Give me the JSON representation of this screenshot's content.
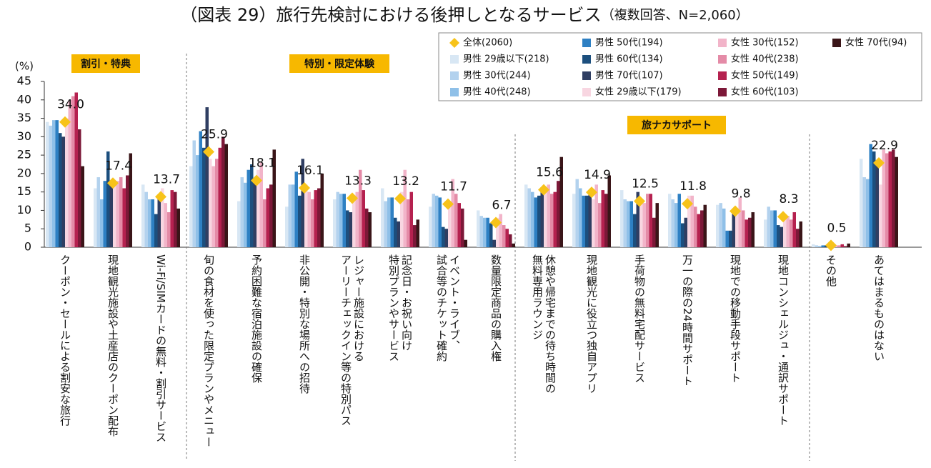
{
  "chart_data": {
    "type": "bar",
    "title": "（図表 29）旅行先検討における後押しとなるサービス",
    "subtitle": "（複数回答、N=2,060）",
    "y_label": "(%)",
    "sections": [
      "割引・特典",
      "特別・限定体験",
      "旅ナカサポート"
    ],
    "categories": [
      [
        "クーポン・セールによる割安な旅行"
      ],
      [
        "現地観光施設や土産店のクーポン配布"
      ],
      [
        "Wi-Fi/SIMカードの無料・割引サービス"
      ],
      [
        "旬の食材を使った限定プランやメニュー"
      ],
      [
        "予約困難な宿泊施設の確保"
      ],
      [
        "非公開・特別な場所への招待"
      ],
      [
        "レジャー施設における",
        "アーリーチェックイン等の特別パス"
      ],
      [
        "記念日・お祝い向け",
        "特別プランやサービス"
      ],
      [
        "イベント・ライブ、",
        "試合等のチケット確約"
      ],
      [
        "数量限定商品の購入権"
      ],
      [
        "休憩や帰宅までの待ち時間の",
        "無料専用ラウンジ"
      ],
      [
        "現地観光に役立つ独自アプリ"
      ],
      [
        "手荷物の無料宅配サービス"
      ],
      [
        "万一の際の24時間サポート"
      ],
      [
        "現地での移動手段サポート"
      ],
      [
        "現地コンシェルジュ・通訳サポート"
      ],
      [
        "その他"
      ],
      [
        "あてはまるものはない"
      ]
    ],
    "ylim": [
      0,
      45
    ],
    "yticks": [
      0,
      5,
      10,
      15,
      20,
      25,
      30,
      35,
      40,
      45
    ],
    "series": [
      {
        "name": "全体(2060)",
        "color": "#f7c31a",
        "marker": "diamond",
        "values": [
          34,
          17.4,
          13.7,
          25.9,
          18.1,
          16.1,
          13.3,
          13.2,
          11.7,
          6.7,
          15.6,
          14.9,
          12.5,
          11.8,
          9.8,
          8.3,
          0.5,
          22.9
        ],
        "value_labels": [
          "34.0",
          "17.4",
          "13.7",
          "25.9",
          "18.1",
          "16.1",
          "13.3",
          "13.2",
          "11.7",
          "6.7",
          "15.6",
          "14.9",
          "12.5",
          "11.8",
          "9.8",
          "8.3",
          "0.5",
          "22.9"
        ]
      },
      {
        "name": "男性 29歳以下(218)",
        "color": "#d8e7f4",
        "values": [
          34,
          16,
          17,
          22,
          12.5,
          11,
          13,
          16,
          11,
          10,
          17,
          14.5,
          15.5,
          14.5,
          11.5,
          7.5,
          0.8,
          24
        ]
      },
      {
        "name": "男性 30代(244)",
        "color": "#b3d2ee",
        "values": [
          33,
          19,
          15,
          29,
          19,
          17,
          15,
          12.5,
          14.5,
          8.5,
          16,
          18.5,
          13,
          13,
          12,
          11,
          0.5,
          19
        ]
      },
      {
        "name": "男性 40代(248)",
        "color": "#8fc0e8",
        "values": [
          34.5,
          13,
          13,
          25,
          17.5,
          17,
          14.5,
          13.5,
          14,
          8,
          15,
          16,
          12.5,
          12,
          10.5,
          10,
          0.3,
          18.5
        ]
      },
      {
        "name": "男性 50代(194)",
        "color": "#2e80c3",
        "values": [
          34.5,
          18,
          13,
          31.5,
          21,
          20.5,
          14.5,
          13.5,
          13.5,
          8,
          13.5,
          14,
          12.5,
          14.5,
          4.5,
          10,
          0.5,
          28
        ]
      },
      {
        "name": "男性 60代(134)",
        "color": "#1c4f7e",
        "values": [
          31,
          26,
          9,
          27,
          22.5,
          14,
          10,
          8,
          5.5,
          6.5,
          14,
          14,
          9,
          6.5,
          4.5,
          6,
          0.5,
          26
        ]
      },
      {
        "name": "男性 70代(107)",
        "color": "#2f3e62",
        "values": [
          30,
          17,
          13,
          38,
          18,
          24,
          9.5,
          7,
          5,
          2,
          15,
          14.5,
          15,
          8,
          10.5,
          5.5,
          0.5,
          22.5
        ]
      },
      {
        "name": "女性 29歳以下(179)",
        "color": "#f8d6e1",
        "values": [
          35,
          18,
          16,
          24,
          21,
          17,
          13,
          15,
          12,
          8,
          15,
          13,
          13,
          14,
          10,
          8.5,
          1,
          17
        ]
      },
      {
        "name": "女性 30代(152)",
        "color": "#f2b4c9",
        "values": [
          40,
          18,
          12,
          22,
          23,
          15,
          15,
          21,
          18.5,
          9,
          17,
          17,
          12,
          14,
          13.5,
          8.5,
          0.5,
          26.5
        ]
      },
      {
        "name": "女性 40代(238)",
        "color": "#e48ba7",
        "values": [
          41,
          19,
          9.5,
          24,
          13,
          13,
          21,
          13,
          14.5,
          6,
          14.5,
          12,
          14.5,
          11,
          10,
          7.5,
          0.5,
          25.5
        ]
      },
      {
        "name": "女性 50代(149)",
        "color": "#b5214f",
        "values": [
          42,
          16,
          15.5,
          27,
          16,
          15.5,
          15.5,
          15,
          12,
          5,
          15,
          15.5,
          14.5,
          9,
          7.5,
          9.5,
          0.8,
          26
        ]
      },
      {
        "name": "女性 60代(103)",
        "color": "#7c1838",
        "values": [
          32,
          19.5,
          15,
          30,
          17,
          16,
          10.5,
          6,
          10.5,
          3.5,
          18,
          14.5,
          8,
          10,
          8,
          5,
          0.3,
          26.5
        ]
      },
      {
        "name": "女性 70代(94)",
        "color": "#3a1518",
        "values": [
          22,
          25.5,
          10.5,
          28,
          26.5,
          20,
          9.5,
          7.5,
          2,
          1,
          24.5,
          19.5,
          12,
          11.5,
          9.5,
          7,
          1,
          24.5
        ]
      }
    ]
  }
}
